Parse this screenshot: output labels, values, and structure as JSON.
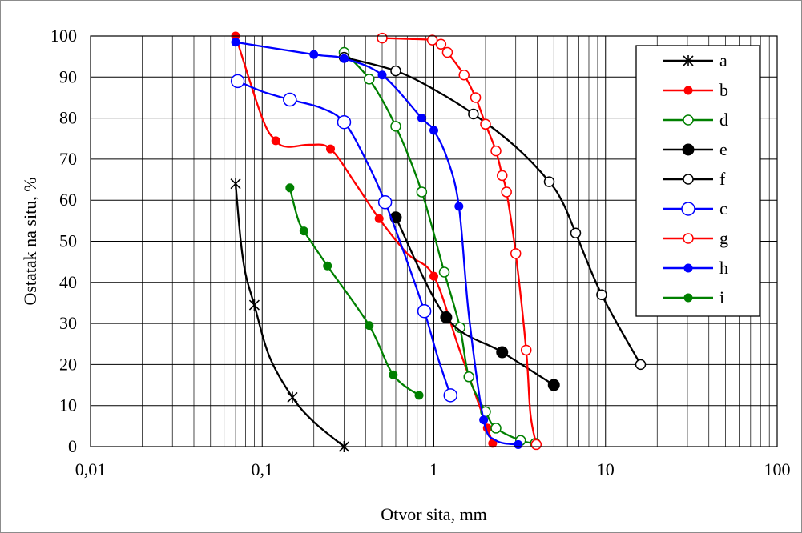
{
  "chart_data": {
    "type": "scatter",
    "title": "",
    "xlabel": "Otvor sita, mm",
    "ylabel": "Ostatak na situ, %",
    "x_scale": "log",
    "xlim": [
      0.01,
      100
    ],
    "ylim": [
      0,
      100
    ],
    "x_ticks": [
      0.01,
      0.1,
      1,
      10,
      100
    ],
    "x_tick_labels": [
      "0,01",
      "0,1",
      "1",
      "10",
      "100"
    ],
    "y_ticks": [
      0,
      10,
      20,
      30,
      40,
      50,
      60,
      70,
      80,
      90,
      100
    ],
    "y_tick_labels": [
      "0",
      "10",
      "20",
      "30",
      "40",
      "50",
      "60",
      "70",
      "80",
      "90",
      "100"
    ],
    "grid": true,
    "legend_position": "right",
    "series": [
      {
        "name": "a",
        "color": "#000000",
        "marker": "star",
        "x": [
          0.07,
          0.09,
          0.15,
          0.3
        ],
        "y": [
          64,
          34.5,
          12,
          0
        ],
        "curve_x": [
          0.07,
          0.075,
          0.08,
          0.09,
          0.11,
          0.15,
          0.2,
          0.3
        ],
        "curve_y": [
          64,
          50,
          42,
          34.5,
          22,
          12,
          6,
          0
        ]
      },
      {
        "name": "b",
        "color": "#ff0000",
        "marker": "filled",
        "x": [
          0.07,
          0.12,
          0.25,
          0.48,
          1.0,
          2.05,
          2.2
        ],
        "y": [
          100,
          74.5,
          72.5,
          55.5,
          41.5,
          4.5,
          0.8
        ],
        "curve_x": [
          0.07,
          0.1,
          0.12,
          0.14,
          0.19,
          0.25,
          0.35,
          0.48,
          0.7,
          1.0,
          1.4,
          2.05,
          2.2
        ],
        "curve_y": [
          100,
          80,
          74.5,
          73,
          73.5,
          72.5,
          64,
          55.5,
          47,
          41.5,
          24,
          4.5,
          0.8
        ]
      },
      {
        "name": "d",
        "color": "#008000",
        "marker": "open",
        "x": [
          0.3,
          0.42,
          0.6,
          0.85,
          1.15,
          1.42,
          1.6,
          2.0,
          2.3,
          3.2,
          3.9
        ],
        "y": [
          96,
          89.5,
          78,
          62,
          42.5,
          29,
          17,
          8.5,
          4.5,
          1.5,
          0.8
        ]
      },
      {
        "name": "e",
        "color": "#000000",
        "marker": "filled",
        "size": "large",
        "x": [
          0.6,
          1.18,
          2.5,
          5.0
        ],
        "y": [
          55.8,
          31.5,
          23,
          15
        ]
      },
      {
        "name": "f",
        "color": "#000000",
        "marker": "open",
        "x": [
          0.3,
          0.6,
          1.7,
          4.7,
          6.7,
          9.5,
          16
        ],
        "y": [
          94.8,
          91.5,
          81,
          64.5,
          52,
          37,
          20
        ],
        "curve_x": [
          0.3,
          0.6,
          1.0,
          1.7,
          3.0,
          4.7,
          5.7,
          6.7,
          9.5,
          16
        ],
        "curve_y": [
          94.8,
          91.5,
          87,
          81,
          73,
          64.5,
          59,
          52,
          37,
          20
        ]
      },
      {
        "name": "c",
        "color": "#0000ff",
        "marker": "open",
        "size": "large",
        "x": [
          0.072,
          0.145,
          0.3,
          0.52,
          0.88,
          1.25
        ],
        "y": [
          89,
          84.5,
          79,
          59.5,
          33,
          12.5
        ],
        "curve_x": [
          0.072,
          0.1,
          0.145,
          0.22,
          0.3,
          0.4,
          0.52,
          0.7,
          0.88,
          1.05,
          1.25
        ],
        "curve_y": [
          89,
          86.5,
          84.5,
          82.5,
          79,
          70,
          59.5,
          45,
          33,
          22,
          12.5
        ]
      },
      {
        "name": "g",
        "color": "#ff0000",
        "marker": "open",
        "x": [
          0.5,
          0.98,
          1.1,
          1.2,
          1.5,
          1.75,
          2.0,
          2.3,
          2.5,
          2.65,
          3.0,
          3.45,
          3.95
        ],
        "y": [
          99.5,
          99,
          98,
          96,
          90.5,
          85,
          78.5,
          72,
          66,
          62,
          47,
          23.5,
          0.5
        ],
        "curve_x": [
          0.5,
          0.7,
          0.98,
          1.1,
          1.2,
          1.5,
          1.75,
          2.0,
          2.3,
          2.5,
          2.65,
          3.0,
          3.45,
          3.65,
          3.95
        ],
        "curve_y": [
          99.5,
          99.3,
          99,
          98,
          96,
          90.5,
          85,
          78.5,
          72,
          66,
          62,
          47,
          23.5,
          8,
          0.5
        ]
      },
      {
        "name": "h",
        "color": "#0000ff",
        "marker": "filled",
        "x": [
          0.07,
          0.2,
          0.3,
          0.5,
          0.85,
          1.0,
          1.4,
          1.95,
          3.1
        ],
        "y": [
          98.5,
          95.5,
          94.5,
          90.5,
          80,
          77,
          58.5,
          6.5,
          0.5
        ],
        "curve_x": [
          0.07,
          0.2,
          0.3,
          0.5,
          0.85,
          1.0,
          1.2,
          1.4,
          1.6,
          1.95,
          2.3,
          3.1
        ],
        "curve_y": [
          98.5,
          95.5,
          94.5,
          90.5,
          80,
          77,
          70,
          58.5,
          32,
          6.5,
          1.5,
          0.5
        ]
      },
      {
        "name": "i",
        "color": "#008000",
        "marker": "filled",
        "x": [
          0.145,
          0.175,
          0.24,
          0.42,
          0.58,
          0.82
        ],
        "y": [
          63,
          52.5,
          44,
          29.5,
          17.5,
          12.5
        ],
        "curve_x": [
          0.145,
          0.16,
          0.175,
          0.24,
          0.42,
          0.58,
          0.82
        ],
        "curve_y": [
          63,
          56,
          52.5,
          44,
          29.5,
          17.5,
          12.5
        ]
      }
    ]
  }
}
